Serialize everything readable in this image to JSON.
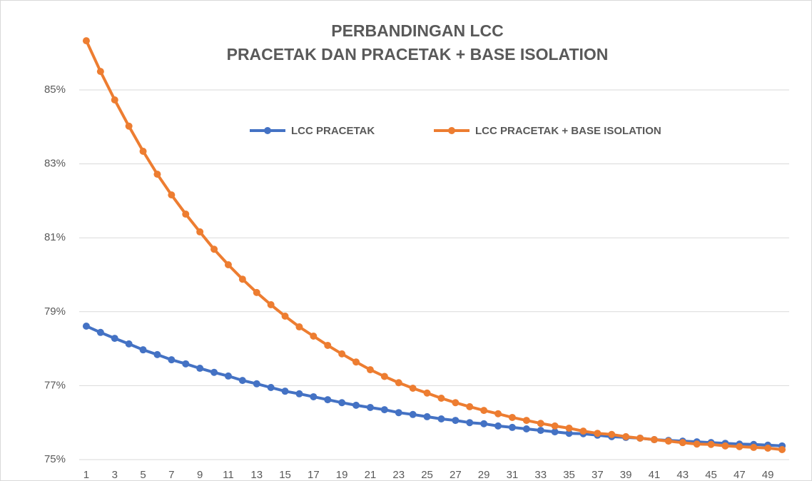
{
  "chart_data": {
    "type": "line",
    "title": [
      "PERBANDINGAN LCC",
      "PRACETAK DAN PRACETAK + BASE ISOLATION"
    ],
    "categories": [
      1,
      null,
      3,
      null,
      5,
      null,
      7,
      null,
      9,
      null,
      11,
      null,
      13,
      null,
      15,
      null,
      17,
      null,
      19,
      null,
      21,
      null,
      23,
      null,
      25,
      null,
      27,
      null,
      29,
      null,
      31,
      null,
      33,
      null,
      35,
      null,
      37,
      null,
      39,
      null,
      41,
      null,
      43,
      null,
      45,
      null,
      47,
      null,
      49,
      null
    ],
    "series": [
      {
        "name": "LCC PRACETAK",
        "color": "#4472c4",
        "values": [
          78.61,
          78.44,
          78.28,
          78.13,
          77.97,
          77.84,
          77.7,
          77.59,
          77.47,
          77.36,
          77.26,
          77.14,
          77.05,
          76.95,
          76.85,
          76.78,
          76.7,
          76.62,
          76.54,
          76.47,
          76.41,
          76.35,
          76.27,
          76.22,
          76.16,
          76.1,
          76.06,
          76.0,
          75.97,
          75.91,
          75.87,
          75.83,
          75.79,
          75.75,
          75.71,
          75.7,
          75.66,
          75.62,
          75.6,
          75.58,
          75.54,
          75.52,
          75.5,
          75.48,
          75.46,
          75.44,
          75.42,
          75.41,
          75.39,
          75.37
        ]
      },
      {
        "name": "LCC PRACETAK + BASE ISOLATION",
        "color": "#ed7d31",
        "values": [
          86.33,
          85.5,
          84.73,
          84.02,
          83.34,
          82.72,
          82.16,
          81.64,
          81.16,
          80.69,
          80.27,
          79.88,
          79.52,
          79.19,
          78.88,
          78.59,
          78.34,
          78.09,
          77.86,
          77.64,
          77.43,
          77.25,
          77.08,
          76.93,
          76.8,
          76.66,
          76.54,
          76.43,
          76.33,
          76.24,
          76.14,
          76.06,
          75.98,
          75.91,
          75.85,
          75.77,
          75.71,
          75.68,
          75.62,
          75.58,
          75.54,
          75.5,
          75.46,
          75.42,
          75.41,
          75.37,
          75.35,
          75.33,
          75.31,
          75.27
        ]
      }
    ],
    "ylim": [
      75,
      87
    ],
    "yticks": [
      {
        "value": 75,
        "label": "75%"
      },
      {
        "value": 77,
        "label": "77%"
      },
      {
        "value": 79,
        "label": "79%"
      },
      {
        "value": 81,
        "label": "81%"
      },
      {
        "value": 83,
        "label": "83%"
      },
      {
        "value": 85,
        "label": "85%"
      }
    ],
    "grid": true,
    "legend": "top"
  }
}
